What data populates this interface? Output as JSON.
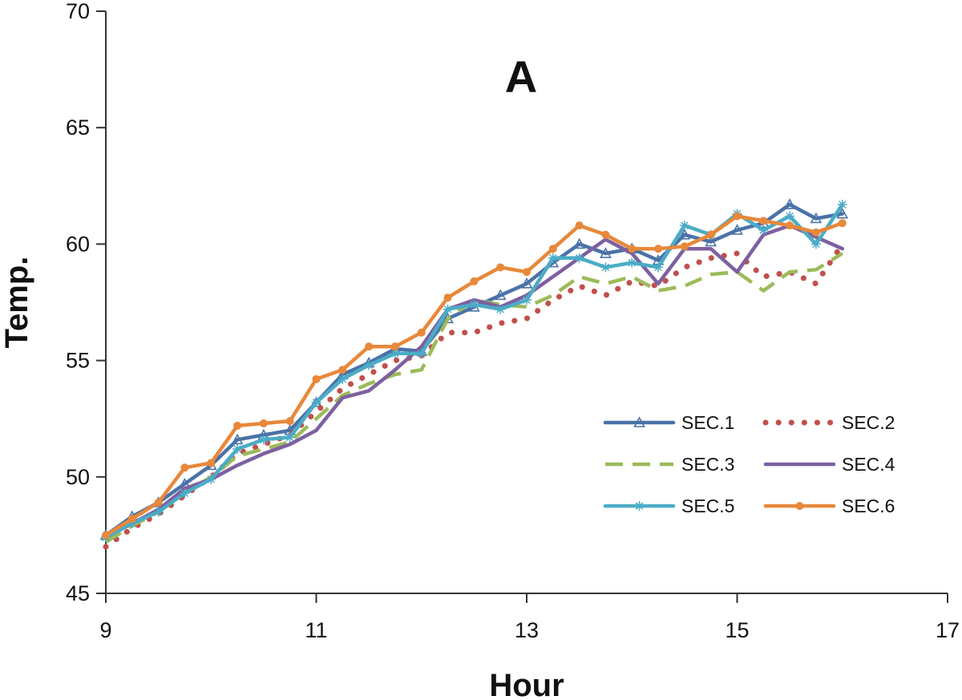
{
  "chart_data": {
    "type": "line",
    "panel_label": "A",
    "xlabel": "Hour",
    "ylabel": "Temp.",
    "xlim": [
      9,
      17
    ],
    "ylim": [
      45,
      70
    ],
    "xticks": [
      "9",
      "11",
      "13",
      "15",
      "17"
    ],
    "yticks": [
      "45",
      "50",
      "55",
      "60",
      "65",
      "70"
    ],
    "grid": false,
    "legend_position": "bottom-right",
    "series": [
      {
        "name": "SEC.1",
        "label": "SEC.1",
        "color": "#4a72a8",
        "style": "solid",
        "marker": "triangle",
        "x": [
          9.0,
          9.25,
          9.5,
          9.75,
          10.0,
          10.25,
          10.5,
          10.75,
          11.0,
          11.25,
          11.5,
          11.75,
          12.0,
          12.25,
          12.5,
          12.75,
          13.0,
          13.25,
          13.5,
          13.75,
          14.0,
          14.25,
          14.5,
          14.75,
          15.0,
          15.25,
          15.5,
          15.75,
          16.0
        ],
        "values": [
          47.5,
          48.3,
          48.9,
          49.7,
          50.5,
          51.6,
          51.8,
          52.0,
          53.2,
          54.4,
          54.9,
          55.5,
          55.4,
          56.8,
          57.3,
          57.8,
          58.3,
          59.2,
          60.0,
          59.6,
          59.8,
          59.3,
          60.4,
          60.1,
          60.6,
          60.9,
          61.7,
          61.1,
          61.3
        ]
      },
      {
        "name": "SEC.2",
        "label": "SEC.2",
        "color": "#c0504d",
        "style": "dotted",
        "marker": "none",
        "x": [
          9.0,
          9.25,
          9.5,
          9.75,
          10.0,
          10.25,
          10.5,
          10.75,
          11.0,
          11.25,
          11.5,
          11.75,
          12.0,
          12.25,
          12.5,
          12.75,
          13.0,
          13.25,
          13.5,
          13.75,
          14.0,
          14.25,
          14.5,
          14.75,
          15.0,
          15.25,
          15.5,
          15.75,
          16.0
        ],
        "values": [
          47.0,
          47.8,
          48.4,
          49.2,
          50.0,
          51.0,
          51.4,
          51.8,
          52.8,
          53.8,
          54.4,
          55.0,
          55.2,
          56.2,
          56.2,
          56.6,
          56.8,
          57.6,
          58.2,
          57.8,
          58.4,
          58.2,
          59.0,
          59.4,
          59.6,
          58.6,
          58.8,
          58.3,
          60.0
        ]
      },
      {
        "name": "SEC.3",
        "label": "SEC.3",
        "color": "#9bbb59",
        "style": "dashed",
        "marker": "none",
        "x": [
          9.0,
          9.25,
          9.5,
          9.75,
          10.0,
          10.25,
          10.5,
          10.75,
          11.0,
          11.25,
          11.5,
          11.75,
          12.0,
          12.25,
          12.5,
          12.75,
          13.0,
          13.25,
          13.5,
          13.75,
          14.0,
          14.25,
          14.5,
          14.75,
          15.0,
          15.25,
          15.5,
          15.75,
          16.0
        ],
        "values": [
          47.2,
          47.9,
          48.5,
          49.3,
          50.0,
          50.9,
          51.2,
          51.5,
          52.5,
          53.5,
          54.0,
          54.4,
          54.6,
          56.8,
          57.6,
          57.4,
          57.3,
          57.8,
          58.6,
          58.3,
          58.6,
          58.0,
          58.2,
          58.7,
          58.8,
          58.0,
          58.8,
          58.9,
          59.6
        ]
      },
      {
        "name": "SEC.4",
        "label": "SEC.4",
        "color": "#7d60a0",
        "style": "solid",
        "marker": "none",
        "x": [
          9.0,
          9.25,
          9.5,
          9.75,
          10.0,
          10.25,
          10.5,
          10.75,
          11.0,
          11.25,
          11.5,
          11.75,
          12.0,
          12.25,
          12.5,
          12.75,
          13.0,
          13.25,
          13.5,
          13.75,
          14.0,
          14.25,
          14.5,
          14.75,
          15.0,
          15.25,
          15.5,
          15.75,
          16.0
        ],
        "values": [
          47.4,
          48.0,
          48.6,
          49.5,
          49.9,
          50.5,
          51.0,
          51.4,
          52.0,
          53.4,
          53.7,
          54.6,
          55.6,
          57.2,
          57.6,
          57.3,
          57.8,
          58.6,
          59.4,
          60.2,
          59.6,
          58.3,
          59.8,
          59.8,
          58.8,
          60.4,
          60.8,
          60.3,
          59.8
        ]
      },
      {
        "name": "SEC.5",
        "label": "SEC.5",
        "color": "#4bacc6",
        "style": "solid",
        "marker": "star",
        "x": [
          9.0,
          9.25,
          9.5,
          9.75,
          10.0,
          10.25,
          10.5,
          10.75,
          11.0,
          11.25,
          11.5,
          11.75,
          12.0,
          12.25,
          12.5,
          12.75,
          13.0,
          13.25,
          13.5,
          13.75,
          14.0,
          14.25,
          14.5,
          14.75,
          15.0,
          15.25,
          15.5,
          15.75,
          16.0
        ],
        "values": [
          47.4,
          48.0,
          48.5,
          49.3,
          49.9,
          51.2,
          51.6,
          51.7,
          53.2,
          54.2,
          54.8,
          55.3,
          55.3,
          57.2,
          57.4,
          57.2,
          57.6,
          59.4,
          59.4,
          59.0,
          59.2,
          59.0,
          60.8,
          60.4,
          61.3,
          60.6,
          61.2,
          60.0,
          61.7
        ]
      },
      {
        "name": "SEC.6",
        "label": "SEC.6",
        "color": "#e8883a",
        "style": "solid",
        "marker": "circle",
        "x": [
          9.0,
          9.25,
          9.5,
          9.75,
          10.0,
          10.25,
          10.5,
          10.75,
          11.0,
          11.25,
          11.5,
          11.75,
          12.0,
          12.25,
          12.5,
          12.75,
          13.0,
          13.25,
          13.5,
          13.75,
          14.0,
          14.25,
          14.5,
          14.75,
          15.0,
          15.25,
          15.5,
          15.75,
          16.0
        ],
        "values": [
          47.5,
          48.2,
          48.9,
          50.4,
          50.6,
          52.2,
          52.3,
          52.4,
          54.2,
          54.6,
          55.6,
          55.6,
          56.2,
          57.7,
          58.4,
          59.0,
          58.8,
          59.8,
          60.8,
          60.4,
          59.8,
          59.8,
          59.9,
          60.4,
          61.2,
          61.0,
          60.8,
          60.5,
          60.9
        ]
      }
    ]
  }
}
